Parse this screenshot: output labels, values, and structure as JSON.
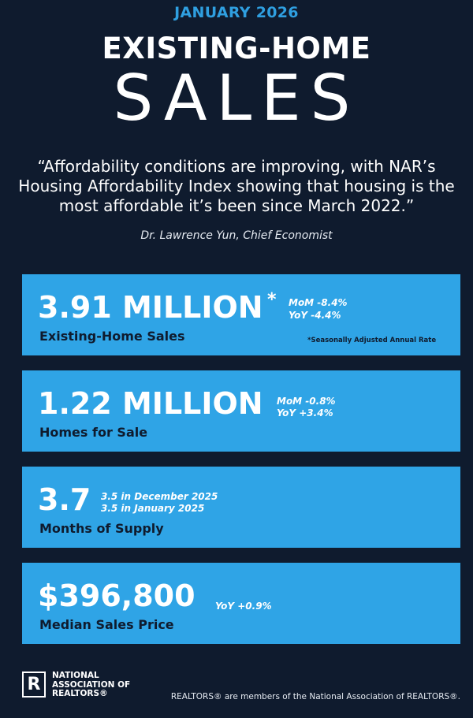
{
  "header": {
    "month": "JANUARY 2026",
    "title_top": "EXISTING-HOME",
    "title_big": "SALES"
  },
  "quote": {
    "text": "“Affordability conditions are improving, with NAR’s Housing Affordability Index showing that housing is the most affordable it’s been since March 2022.”",
    "attribution": "Dr. Lawrence Yun, Chief Economist"
  },
  "cards": [
    {
      "value": "3.91 MILLION",
      "value_mark": "*",
      "label": "Existing-Home Sales",
      "mom": "MoM -8.4%",
      "yoy": "YoY -4.4%",
      "note": "*Seasonally Adjusted Annual Rate"
    },
    {
      "value": "1.22 MILLION",
      "label": "Homes for Sale",
      "mom": "MoM -0.8%",
      "yoy": "YoY +3.4%"
    },
    {
      "value": "3.7",
      "label": "Months of Supply",
      "line1": "3.5 in December 2025",
      "line2": "3.5 in January 2025"
    },
    {
      "value": "$396,800",
      "label": "Median Sales Price",
      "yoy": "YoY +0.9%"
    }
  ],
  "footer": {
    "logo_letter": "R",
    "org_line1": "NATIONAL",
    "org_line2": "ASSOCIATION OF",
    "org_line3": "REALTORS®",
    "note": "REALTORS® are members of the National Association of REALTORS®."
  },
  "colors": {
    "background": "#0f1b2e",
    "accent": "#2fa4e6",
    "month_text": "#2f9fe0"
  }
}
